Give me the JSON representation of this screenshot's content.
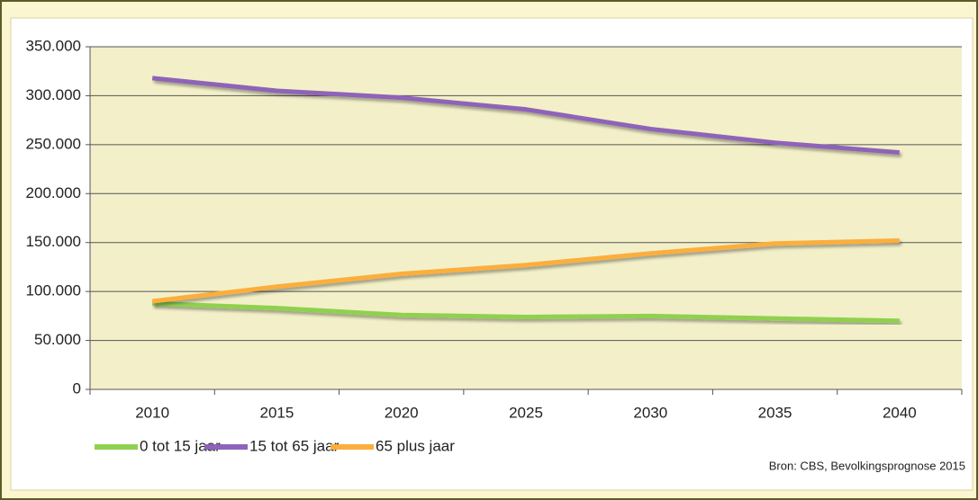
{
  "chart_data": {
    "type": "line",
    "categories": [
      "2010",
      "2015",
      "2020",
      "2025",
      "2030",
      "2035",
      "2040"
    ],
    "series": [
      {
        "name": "0 tot 15 jaar",
        "color": "#8fd14f",
        "values": [
          88000,
          83000,
          76000,
          74000,
          75000,
          72500,
          70000
        ]
      },
      {
        "name": "15 tot 65 jaar",
        "color": "#8e63b8",
        "values": [
          318000,
          305000,
          298000,
          286000,
          266000,
          252000,
          242000
        ]
      },
      {
        "name": "65 plus jaar",
        "color": "#fcae3c",
        "values": [
          90000,
          105000,
          118000,
          127000,
          139000,
          149000,
          152000
        ]
      }
    ],
    "ylim": [
      0,
      350000
    ],
    "yticks": [
      0,
      {
        "value": 50000,
        "label": "50.000"
      },
      {
        "value": 100000,
        "label": "100.000"
      },
      {
        "value": 150000,
        "label": "150.000"
      },
      {
        "value": 200000,
        "label": "200.000"
      },
      {
        "value": 250000,
        "label": "250.000"
      },
      {
        "value": 300000,
        "label": "300.000"
      },
      {
        "value": 350000,
        "label": "350.000"
      }
    ],
    "grid": true,
    "legend": "bottom-left",
    "source": "Bron: CBS, Bevolkingsprognose 2015"
  }
}
